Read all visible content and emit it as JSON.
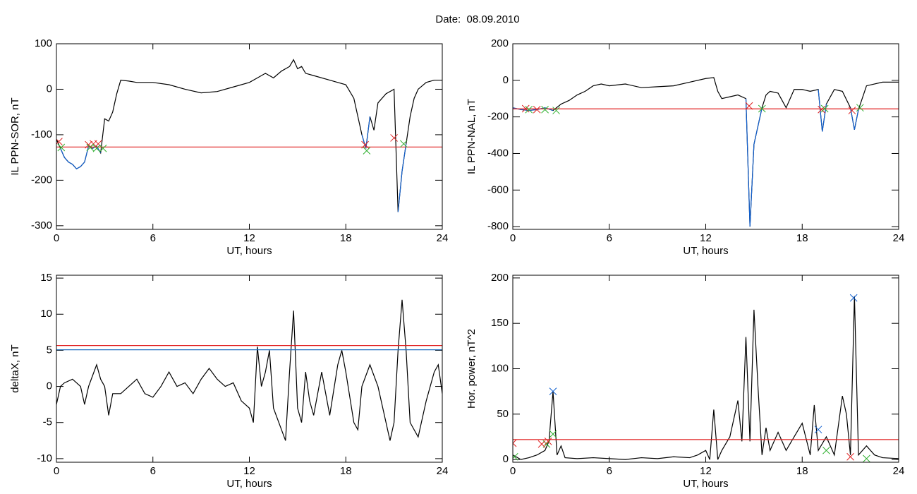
{
  "title": "Date:  08.09.2010",
  "chart_data": [
    {
      "type": "line",
      "ylabel": "IL PPN-SOR, nT",
      "xlabel": "UT, hours",
      "xlim": [
        0,
        24
      ],
      "xticks": [
        0,
        6,
        12,
        18,
        24
      ],
      "ylim": [
        -308,
        100
      ],
      "yticks": [
        -300,
        -200,
        -100,
        0,
        100
      ],
      "x": [
        0,
        0.25,
        0.5,
        0.75,
        1,
        1.25,
        1.5,
        1.75,
        2,
        2.25,
        2.5,
        2.75,
        3,
        3.25,
        3.5,
        3.75,
        4,
        4.5,
        5,
        6,
        7,
        8,
        9,
        10,
        11,
        12,
        12.5,
        13,
        13.5,
        14,
        14.5,
        14.75,
        15,
        15.25,
        15.5,
        16,
        17,
        17.5,
        18,
        18.5,
        18.75,
        19,
        19.25,
        19.5,
        19.75,
        20,
        20.5,
        21,
        21.25,
        21.5,
        21.75,
        22,
        22.25,
        22.5,
        23,
        23.5,
        24
      ],
      "series": [
        {
          "color": "#000000",
          "values": [
            -110,
            -130,
            -150,
            -160,
            -165,
            -175,
            -170,
            -160,
            -125,
            -130,
            -125,
            -140,
            -65,
            -70,
            -50,
            -10,
            20,
            18,
            15,
            15,
            10,
            0,
            -8,
            -5,
            5,
            15,
            25,
            35,
            25,
            40,
            50,
            65,
            45,
            50,
            35,
            30,
            20,
            15,
            10,
            -20,
            -60,
            -100,
            -130,
            -60,
            -90,
            -30,
            -10,
            0,
            -270,
            -180,
            -120,
            -60,
            -20,
            0,
            15,
            20,
            20
          ]
        },
        {
          "color": "#1060d0",
          "values": [
            null,
            -130,
            -150,
            -160,
            -165,
            -175,
            -170,
            -160,
            -125,
            -130,
            -125,
            -140,
            null,
            null,
            null,
            null,
            null,
            null,
            null,
            null,
            null,
            null,
            null,
            null,
            null,
            null,
            null,
            null,
            null,
            null,
            null,
            null,
            null,
            null,
            null,
            null,
            null,
            null,
            null,
            null,
            null,
            -100,
            -130,
            -60,
            null,
            null,
            null,
            null,
            -270,
            -180,
            -120,
            null,
            null,
            null,
            null,
            null,
            null
          ]
        }
      ],
      "hlines": [
        {
          "value": -127,
          "color": "#e02020"
        }
      ],
      "markers": [
        {
          "color": "#e02020",
          "x": [
            0.15,
            2,
            2.3,
            2.6,
            19.2,
            21
          ],
          "values": [
            -115,
            -122,
            -120,
            -120,
            -122,
            -107
          ]
        },
        {
          "color": "#30b030",
          "x": [
            0.3,
            2.1,
            2.5,
            2.9,
            19.3,
            21.6
          ],
          "values": [
            -128,
            -128,
            -130,
            -130,
            -135,
            -120
          ]
        }
      ]
    },
    {
      "type": "line",
      "ylabel": "IL PPN-NAL, nT",
      "xlabel": "UT, hours",
      "xlim": [
        0,
        24
      ],
      "xticks": [
        0,
        6,
        12,
        18,
        24
      ],
      "ylim": [
        -815,
        200
      ],
      "yticks": [
        -800,
        -600,
        -400,
        -200,
        0,
        200
      ],
      "x": [
        0,
        0.5,
        1,
        1.5,
        2,
        2.5,
        3,
        3.5,
        4,
        4.5,
        5,
        5.5,
        6,
        7,
        8,
        9,
        10,
        11,
        12,
        12.5,
        12.75,
        13,
        13.5,
        14,
        14.5,
        14.75,
        15,
        15.25,
        15.5,
        15.75,
        16,
        16.5,
        17,
        17.5,
        18,
        18.5,
        19,
        19.25,
        19.5,
        20,
        20.5,
        21,
        21.25,
        21.5,
        22,
        23,
        24
      ],
      "series": [
        {
          "color": "#000000",
          "values": [
            -150,
            -160,
            -165,
            -160,
            -150,
            -165,
            -130,
            -110,
            -80,
            -60,
            -30,
            -20,
            -30,
            -20,
            -40,
            -35,
            -30,
            -10,
            10,
            15,
            -60,
            -100,
            -90,
            -80,
            -100,
            -800,
            -350,
            -250,
            -150,
            -80,
            -60,
            -70,
            -150,
            -50,
            -50,
            -60,
            -50,
            -280,
            -130,
            -50,
            -60,
            -150,
            -270,
            -160,
            -30,
            -10,
            -10
          ]
        },
        {
          "color": "#1060d0",
          "values": [
            -150,
            -160,
            -165,
            -160,
            -150,
            -165,
            null,
            null,
            null,
            null,
            null,
            null,
            null,
            null,
            null,
            null,
            null,
            null,
            null,
            null,
            null,
            null,
            null,
            null,
            -100,
            -800,
            -350,
            -250,
            -150,
            null,
            null,
            null,
            null,
            null,
            null,
            null,
            -50,
            -280,
            -130,
            null,
            null,
            -150,
            -270,
            -160,
            null,
            null,
            null
          ]
        }
      ],
      "hlines": [
        {
          "value": -156,
          "color": "#e02020"
        }
      ],
      "markers": [
        {
          "color": "#e02020",
          "x": [
            0.8,
            1.5,
            14.7,
            19.2,
            21.1
          ],
          "values": [
            -155,
            -160,
            -140,
            -160,
            -165
          ]
        },
        {
          "color": "#30b030",
          "x": [
            1,
            2,
            2.7,
            15.5,
            19.4,
            21.6
          ],
          "values": [
            -160,
            -160,
            -165,
            -155,
            -155,
            -150
          ]
        }
      ]
    },
    {
      "type": "line",
      "ylabel": "deltaX, nT",
      "xlabel": "UT, hours",
      "xlim": [
        0,
        24
      ],
      "xticks": [
        0,
        6,
        12,
        18,
        24
      ],
      "ylim": [
        -10.5,
        15.4
      ],
      "yticks": [
        -10,
        -5,
        0,
        5,
        10,
        15
      ],
      "x": [
        0,
        0.25,
        0.5,
        1,
        1.5,
        1.75,
        2,
        2.5,
        2.75,
        3,
        3.25,
        3.5,
        4,
        4.5,
        5,
        5.5,
        6,
        6.5,
        7,
        7.5,
        8,
        8.5,
        9,
        9.5,
        10,
        10.5,
        11,
        11.5,
        12,
        12.25,
        12.5,
        12.75,
        13,
        13.25,
        13.5,
        14,
        14.25,
        14.5,
        14.75,
        15,
        15.25,
        15.5,
        15.75,
        16,
        16.5,
        17,
        17.5,
        17.75,
        18,
        18.5,
        18.75,
        19,
        19.5,
        20,
        20.5,
        20.75,
        21,
        21.25,
        21.5,
        21.75,
        22,
        22.5,
        23,
        23.5,
        23.75,
        24
      ],
      "series": [
        {
          "color": "#000000",
          "values": [
            -2.5,
            0,
            0.5,
            1,
            0,
            -2.5,
            0,
            3,
            1,
            0,
            -4,
            -1,
            -1,
            0,
            1,
            -1,
            -1.5,
            0,
            2,
            0,
            0.5,
            -1,
            1,
            2.5,
            1,
            0,
            0.5,
            -2,
            -3,
            -5,
            5.5,
            0,
            2,
            5,
            -3,
            -6,
            -7.5,
            2,
            10.5,
            -3,
            -5,
            2,
            -2,
            -4,
            2,
            -4,
            3,
            5,
            2,
            -5,
            -6,
            0,
            3,
            0,
            -5,
            -7.5,
            -5,
            5,
            12,
            5,
            -5,
            -7,
            -2,
            2,
            3,
            -1
          ]
        }
      ],
      "hlines": [
        {
          "value": 5.66,
          "color": "#e02020"
        },
        {
          "value": 5.08,
          "color": "#1f6fc0"
        }
      ],
      "markers": []
    },
    {
      "type": "line",
      "ylabel": "Hor. power, nT^2",
      "xlabel": "UT, hours",
      "xlim": [
        0,
        24
      ],
      "xticks": [
        0,
        6,
        12,
        18,
        24
      ],
      "ylim": [
        -3,
        203
      ],
      "yticks": [
        0,
        50,
        100,
        150,
        200
      ],
      "x": [
        0,
        0.5,
        1,
        1.5,
        2,
        2.25,
        2.5,
        2.75,
        3,
        3.25,
        4,
        5,
        6,
        7,
        8,
        9,
        10,
        11,
        11.5,
        12,
        12.25,
        12.5,
        12.75,
        13,
        13.5,
        14,
        14.25,
        14.5,
        14.75,
        15,
        15.25,
        15.5,
        15.75,
        16,
        16.5,
        17,
        17.5,
        18,
        18.5,
        18.75,
        19,
        19.5,
        20,
        20.5,
        20.75,
        21,
        21.25,
        21.5,
        22,
        22.5,
        23,
        24
      ],
      "series": [
        {
          "color": "#000000",
          "values": [
            5,
            0,
            2,
            5,
            10,
            20,
            75,
            5,
            15,
            2,
            1,
            2,
            1,
            0,
            2,
            1,
            3,
            2,
            5,
            10,
            0,
            55,
            0,
            10,
            25,
            65,
            20,
            135,
            20,
            165,
            80,
            5,
            35,
            10,
            30,
            10,
            25,
            40,
            5,
            60,
            10,
            25,
            5,
            70,
            50,
            5,
            180,
            5,
            15,
            5,
            2,
            1
          ]
        }
      ],
      "hlines": [
        {
          "value": 22,
          "color": "#e02020"
        }
      ],
      "markers": [
        {
          "color": "#1060d0",
          "x": [
            2.5,
            19,
            21.2
          ],
          "values": [
            75,
            33,
            178
          ]
        },
        {
          "color": "#30b030",
          "x": [
            0.1,
            2.1,
            2.5,
            19.5,
            22
          ],
          "values": [
            3,
            17,
            28,
            10,
            1
          ]
        },
        {
          "color": "#e02020",
          "x": [
            0,
            1.8,
            2.2,
            21
          ],
          "values": [
            18,
            17,
            20,
            3
          ]
        }
      ]
    }
  ]
}
